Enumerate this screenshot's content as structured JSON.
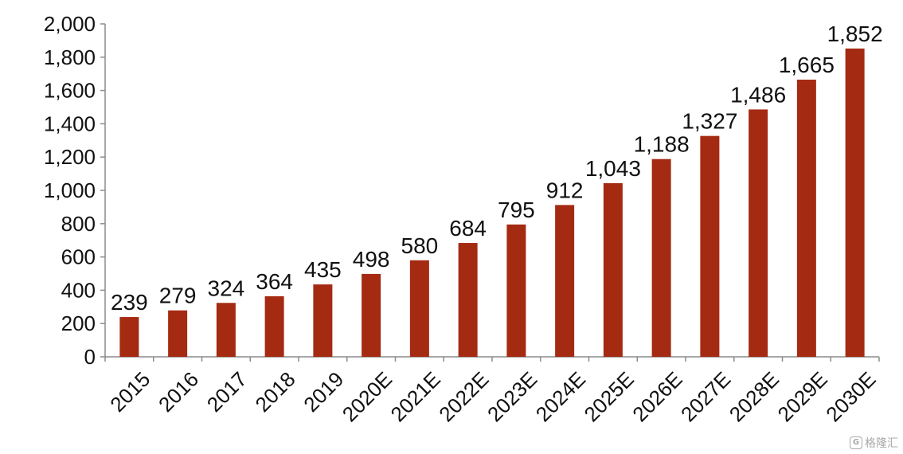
{
  "chart_data": {
    "type": "bar",
    "categories": [
      "2015",
      "2016",
      "2017",
      "2018",
      "2019",
      "2020E",
      "2021E",
      "2022E",
      "2023E",
      "2024E",
      "2025E",
      "2026E",
      "2027E",
      "2028E",
      "2029E",
      "2030E"
    ],
    "values": [
      239,
      279,
      324,
      364,
      435,
      498,
      580,
      684,
      795,
      912,
      1043,
      1188,
      1327,
      1486,
      1665,
      1852
    ],
    "value_labels": [
      "239",
      "279",
      "324",
      "364",
      "435",
      "498",
      "580",
      "684",
      "795",
      "912",
      "1,043",
      "1,188",
      "1,327",
      "1,486",
      "1,665",
      "1,852"
    ],
    "title": "",
    "xlabel": "",
    "ylabel": "",
    "ylim": [
      0,
      2000
    ],
    "yticks": [
      0,
      200,
      400,
      600,
      800,
      1000,
      1200,
      1400,
      1600,
      1800,
      2000
    ],
    "ytick_labels": [
      "0",
      "200",
      "400",
      "600",
      "800",
      "1,000",
      "1,200",
      "1,400",
      "1,600",
      "1,800",
      "2,000"
    ],
    "grid": false,
    "legend": "none",
    "bar_color": "#A52A12"
  },
  "watermark": {
    "icon": "G",
    "text": "格隆汇"
  }
}
